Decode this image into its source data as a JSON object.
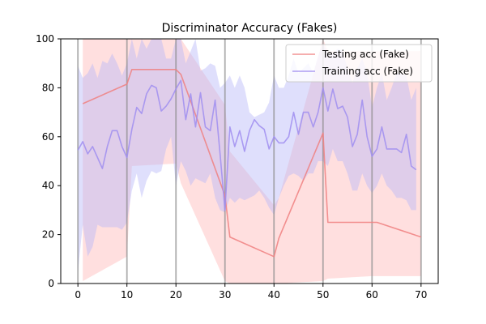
{
  "chart_data": {
    "type": "line",
    "title": "Discriminator Accuracy (Fakes)",
    "xlabel": "",
    "ylabel": "",
    "xlim": [
      -3.5,
      73.5
    ],
    "ylim": [
      0,
      100
    ],
    "xticks": [
      0,
      10,
      20,
      30,
      40,
      50,
      60,
      70
    ],
    "yticks": [
      0,
      20,
      40,
      60,
      80,
      100
    ],
    "vlines": [
      0,
      10,
      20,
      30,
      40,
      50,
      60,
      70
    ],
    "legend_position": "top-right",
    "series": [
      {
        "name": "Testing acc (Fake)",
        "color": "#f08080",
        "fill_color": "#ffb3b3",
        "x": [
          1,
          10,
          11,
          20,
          21,
          30,
          31,
          40,
          41,
          50,
          51,
          60,
          61,
          70
        ],
        "y": [
          73.5,
          81.5,
          87.5,
          87.5,
          85.5,
          36,
          19,
          11,
          18.5,
          61.5,
          25,
          25,
          25,
          19
        ],
        "lower": [
          1,
          11,
          48,
          49,
          41,
          1,
          0,
          0,
          0,
          1,
          2,
          3,
          3,
          3
        ],
        "upper": [
          100,
          100,
          100,
          100,
          100,
          73,
          54,
          32,
          35,
          100,
          95,
          95,
          95,
          95
        ]
      },
      {
        "name": "Training acc (Fake)",
        "color": "#a08ef0",
        "fill_color": "#b8b8f8",
        "x": [
          0,
          1,
          2,
          3,
          4,
          5,
          6,
          7,
          8,
          9,
          10,
          11,
          12,
          13,
          14,
          15,
          16,
          17,
          18,
          19,
          20,
          21,
          22,
          23,
          24,
          25,
          26,
          27,
          28,
          29,
          30,
          31,
          32,
          33,
          34,
          35,
          36,
          37,
          38,
          39,
          40,
          41,
          42,
          43,
          44,
          45,
          46,
          47,
          48,
          49,
          50,
          51,
          52,
          53,
          54,
          55,
          56,
          57,
          58,
          59,
          60,
          61,
          62,
          63,
          64,
          65,
          66,
          67,
          68,
          69,
          70
        ],
        "y": [
          54.5,
          58,
          53,
          56,
          51.5,
          47,
          56,
          62.5,
          62.5,
          56,
          51.5,
          63,
          72,
          69.5,
          77.5,
          81,
          80,
          70.5,
          72.5,
          75.5,
          79.5,
          83,
          67,
          77.5,
          64,
          78,
          64,
          62.5,
          75,
          53,
          30,
          64,
          56,
          62.5,
          54,
          62.5,
          67,
          64.5,
          63,
          55,
          60,
          57.5,
          57.5,
          60,
          70,
          61,
          70,
          70,
          64,
          70,
          80,
          70.5,
          79.5,
          71.5,
          72.5,
          68,
          56,
          61,
          75,
          60,
          52,
          55,
          64,
          55,
          55,
          55,
          53.5,
          61,
          48,
          46.5,
          null
        ],
        "lower": [
          5,
          24,
          11,
          15,
          24,
          23,
          23,
          23,
          23,
          22,
          25,
          38,
          45,
          35,
          42,
          46,
          45,
          46,
          55,
          60,
          40,
          50,
          46,
          40,
          43,
          42,
          41,
          45,
          35,
          30,
          29,
          35,
          33,
          35,
          34,
          35,
          36,
          38,
          35,
          31,
          28,
          35,
          40,
          44,
          45,
          44,
          42,
          45,
          45,
          50,
          50,
          48,
          55,
          50,
          50,
          45,
          38,
          38,
          45,
          40,
          37,
          40,
          45,
          40,
          38,
          35,
          35,
          34,
          30,
          30,
          null
        ],
        "upper": [
          89,
          84,
          86,
          90,
          84,
          91,
          90,
          94,
          90,
          85,
          90,
          100,
          92,
          100,
          96,
          100,
          100,
          100,
          92,
          92,
          100,
          100,
          90,
          95,
          100,
          87,
          88,
          90,
          89,
          80,
          82,
          85,
          80,
          85,
          80,
          70,
          68,
          69,
          70,
          74,
          85,
          80,
          80,
          85,
          92,
          86,
          88,
          90,
          86,
          93,
          98,
          94,
          94,
          96,
          95,
          88,
          82,
          88,
          92,
          86,
          72,
          80,
          86,
          75,
          80,
          86,
          86,
          85,
          75,
          80,
          80
        ]
      }
    ]
  }
}
